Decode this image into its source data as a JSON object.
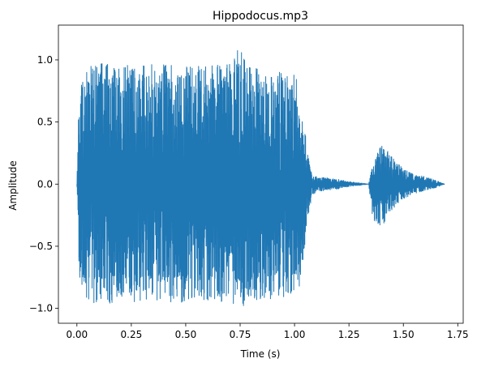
{
  "chart_data": {
    "type": "line",
    "title": "Hippodocus.mp3",
    "xlabel": "Time (s)",
    "ylabel": "Amplitude",
    "xlim": [
      -0.085,
      1.775
    ],
    "ylim": [
      -1.12,
      1.28
    ],
    "x_ticks": [
      0.0,
      0.25,
      0.5,
      0.75,
      1.0,
      1.25,
      1.5,
      1.75
    ],
    "x_tick_labels": [
      "0.00",
      "0.25",
      "0.50",
      "0.75",
      "1.00",
      "1.25",
      "1.50",
      "1.75"
    ],
    "y_ticks": [
      -1.0,
      -0.5,
      0.0,
      0.5,
      1.0
    ],
    "y_tick_labels": [
      "−1.0",
      "−0.5",
      "0.0",
      "0.5",
      "1.0"
    ],
    "grid": false,
    "series": [
      {
        "color": "#1f77b4",
        "envelope": {
          "description_points_time_s": [
            0.0,
            0.01,
            0.05,
            0.1,
            0.2,
            0.3,
            0.4,
            0.5,
            0.6,
            0.7,
            0.75,
            0.8,
            0.9,
            1.0,
            1.03,
            1.06,
            1.08,
            1.1,
            1.15,
            1.2,
            1.25,
            1.3,
            1.34,
            1.36,
            1.4,
            1.45,
            1.5,
            1.55,
            1.6,
            1.65,
            1.69
          ],
          "upper": [
            0.0,
            0.75,
            0.95,
            1.02,
            0.95,
            0.97,
            0.98,
            0.97,
            0.95,
            0.98,
            1.12,
            0.95,
            0.92,
            0.9,
            0.7,
            0.25,
            0.08,
            0.06,
            0.05,
            0.04,
            0.02,
            0.01,
            0.0,
            0.17,
            0.32,
            0.22,
            0.12,
            0.08,
            0.06,
            0.03,
            0.0
          ],
          "lower": [
            0.0,
            -0.8,
            -0.95,
            -0.97,
            -0.95,
            -0.97,
            -0.95,
            -0.98,
            -0.95,
            -0.95,
            -1.0,
            -0.95,
            -0.92,
            -0.9,
            -0.8,
            -0.3,
            -0.1,
            -0.06,
            -0.05,
            -0.04,
            -0.02,
            -0.01,
            0.0,
            -0.3,
            -0.35,
            -0.2,
            -0.12,
            -0.08,
            -0.05,
            -0.03,
            0.0
          ]
        }
      }
    ]
  }
}
